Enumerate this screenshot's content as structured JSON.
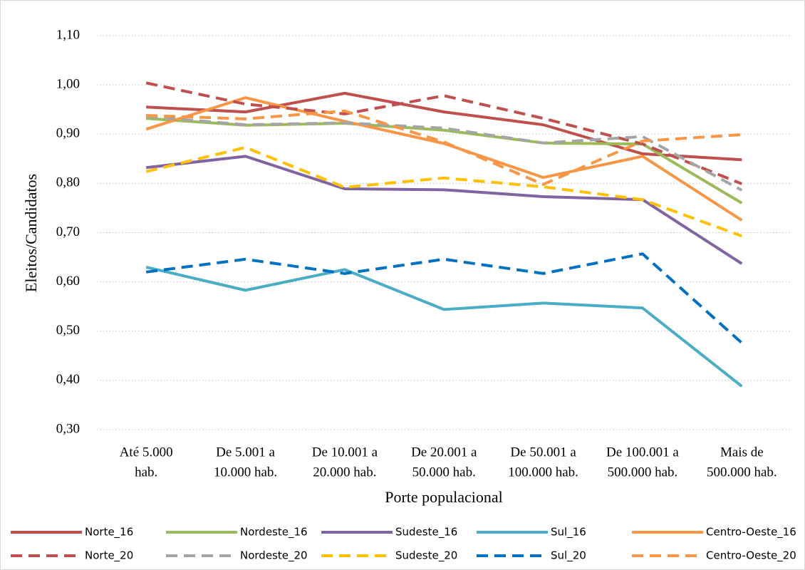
{
  "chart_data": {
    "type": "line",
    "x_label": "Porte populacional",
    "y_label": "Eleitos/Candidatos",
    "categories": [
      [
        "Até 5.000",
        "hab."
      ],
      [
        "De 5.001 a",
        "10.000 hab."
      ],
      [
        "De 10.001 a",
        "20.000 hab."
      ],
      [
        "De 20.001 a",
        "50.000 hab."
      ],
      [
        "De 50.001 a",
        "100.000 hab."
      ],
      [
        "De 100.001 a",
        "500.000 hab."
      ],
      [
        "Mais de",
        "500.000 hab."
      ]
    ],
    "ylim": [
      0.3,
      1.1
    ],
    "yticks": [
      {
        "value": 0.3,
        "label": "0,30"
      },
      {
        "value": 0.4,
        "label": "0,40"
      },
      {
        "value": 0.5,
        "label": "0,50"
      },
      {
        "value": 0.6,
        "label": "0,60"
      },
      {
        "value": 0.7,
        "label": "0,70"
      },
      {
        "value": 0.8,
        "label": "0,80"
      },
      {
        "value": 0.9,
        "label": "0,90"
      },
      {
        "value": 1.0,
        "label": "1,00"
      },
      {
        "value": 1.1,
        "label": "1,10"
      }
    ],
    "grid": true,
    "legend": "bottom",
    "series": [
      {
        "name": "Norte_16",
        "color": "#c0504d",
        "dashed": false,
        "values": [
          0.955,
          0.945,
          0.983,
          0.945,
          0.919,
          0.86,
          0.848
        ]
      },
      {
        "name": "Nordeste_16",
        "color": "#9bbb59",
        "dashed": false,
        "values": [
          0.932,
          0.918,
          0.922,
          0.908,
          0.882,
          0.88,
          0.76
        ]
      },
      {
        "name": "Sudeste_16",
        "color": "#8064a2",
        "dashed": false,
        "values": [
          0.832,
          0.855,
          0.789,
          0.787,
          0.773,
          0.767,
          0.637
        ]
      },
      {
        "name": "Sul_16",
        "color": "#4bacc6",
        "dashed": false,
        "values": [
          0.63,
          0.583,
          0.625,
          0.544,
          0.557,
          0.547,
          0.388
        ]
      },
      {
        "name": "Centro-Oeste_16",
        "color": "#f79646",
        "dashed": false,
        "values": [
          0.91,
          0.974,
          0.926,
          0.881,
          0.812,
          0.855,
          0.725
        ]
      },
      {
        "name": "Norte_20",
        "color": "#c0504d",
        "dashed": true,
        "values": [
          1.004,
          0.961,
          0.941,
          0.978,
          0.932,
          0.88,
          0.799
        ]
      },
      {
        "name": "Nordeste_20",
        "color": "#a5a5a5",
        "dashed": true,
        "values": [
          0.936,
          0.919,
          0.923,
          0.912,
          0.882,
          0.895,
          0.786
        ]
      },
      {
        "name": "Sudeste_20",
        "color": "#ffc000",
        "dashed": true,
        "values": [
          0.824,
          0.873,
          0.792,
          0.811,
          0.793,
          0.767,
          0.693
        ]
      },
      {
        "name": "Sul_20",
        "color": "#0070c0",
        "dashed": true,
        "values": [
          0.62,
          0.646,
          0.617,
          0.646,
          0.617,
          0.657,
          0.476
        ]
      },
      {
        "name": "Centro-Oeste_20",
        "color": "#f79646",
        "dashed": true,
        "values": [
          0.938,
          0.931,
          0.947,
          0.884,
          0.798,
          0.886,
          0.899
        ]
      }
    ]
  }
}
